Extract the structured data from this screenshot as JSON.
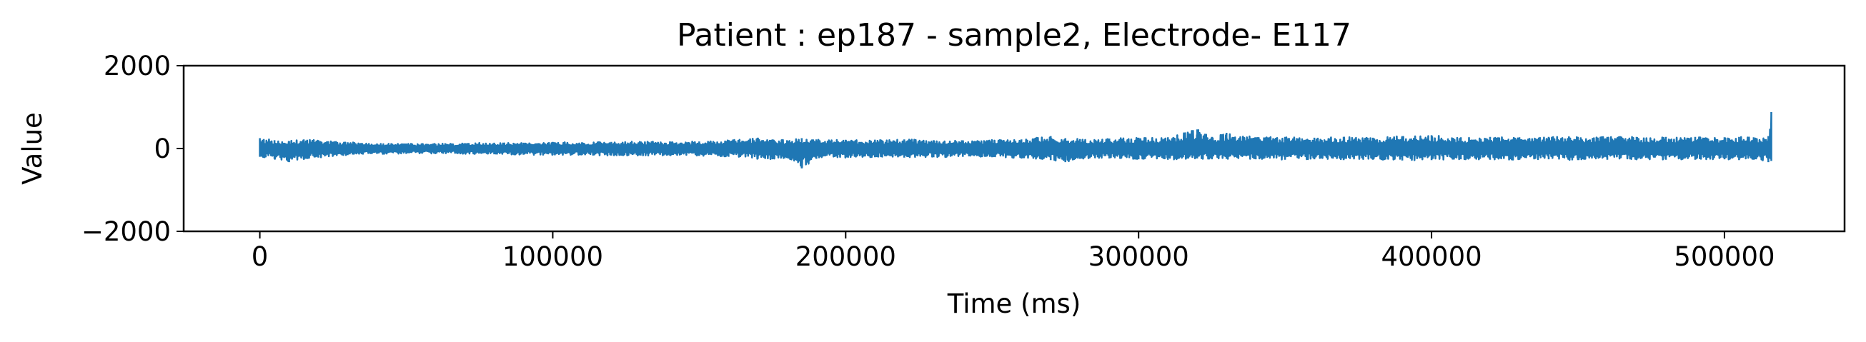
{
  "chart_data": {
    "type": "line",
    "title": "Patient : ep187 - sample2, Electrode- E117",
    "xlabel": "Time (ms)",
    "ylabel": "Value",
    "xlim": [
      -26000,
      541000
    ],
    "ylim": [
      -2000,
      2000
    ],
    "x_ticks": [
      0,
      100000,
      200000,
      300000,
      400000,
      500000
    ],
    "x_tick_labels": [
      "0",
      "100000",
      "200000",
      "300000",
      "400000",
      "500000"
    ],
    "y_ticks": [
      2000,
      0,
      -2000
    ],
    "y_tick_labels": [
      "2000",
      "0",
      "−2000"
    ],
    "grid": false,
    "legend": "none",
    "color": "#1f77b4",
    "series": [
      {
        "x": [
          0,
          5000,
          10000,
          15000,
          20000,
          30000,
          40000,
          50000,
          60000,
          70000,
          80000,
          90000,
          100000,
          110000,
          120000,
          130000,
          140000,
          150000,
          160000,
          170000,
          175000,
          180000,
          185000,
          190000,
          200000,
          210000,
          220000,
          230000,
          240000,
          250000,
          260000,
          270000,
          275000,
          280000,
          290000,
          300000,
          310000,
          320000,
          325000,
          330000,
          340000,
          350000,
          360000,
          370000,
          380000,
          390000,
          400000,
          410000,
          420000,
          430000,
          440000,
          450000,
          460000,
          470000,
          480000,
          490000,
          500000,
          505000,
          510000,
          515000,
          516000
        ],
        "y_max": [
          250,
          200,
          180,
          220,
          200,
          150,
          120,
          120,
          110,
          130,
          140,
          140,
          160,
          150,
          160,
          170,
          160,
          170,
          200,
          260,
          220,
          200,
          250,
          220,
          210,
          200,
          220,
          200,
          190,
          210,
          220,
          300,
          250,
          230,
          240,
          260,
          270,
          460,
          280,
          380,
          270,
          280,
          260,
          280,
          260,
          300,
          320,
          270,
          280,
          270,
          280,
          280,
          280,
          280,
          280,
          280,
          270,
          280,
          270,
          300,
          880
        ],
        "y_min": [
          -200,
          -250,
          -330,
          -260,
          -220,
          -160,
          -130,
          -130,
          -120,
          -130,
          -140,
          -150,
          -160,
          -160,
          -170,
          -170,
          -170,
          -180,
          -200,
          -250,
          -260,
          -230,
          -480,
          -250,
          -220,
          -210,
          -220,
          -210,
          -200,
          -210,
          -230,
          -280,
          -330,
          -250,
          -240,
          -260,
          -270,
          -240,
          -260,
          -250,
          -260,
          -270,
          -260,
          -280,
          -270,
          -290,
          -280,
          -260,
          -270,
          -270,
          -260,
          -280,
          -270,
          -270,
          -270,
          -270,
          -260,
          -280,
          -270,
          -330,
          -300
        ]
      }
    ]
  }
}
